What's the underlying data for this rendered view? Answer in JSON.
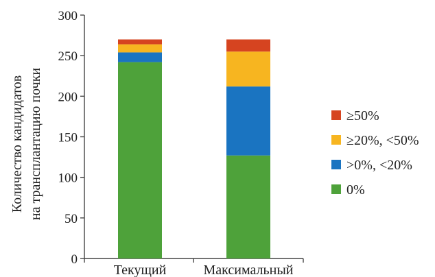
{
  "chart_data": {
    "type": "bar",
    "stacked": true,
    "categories": [
      "Текущий",
      "Максимальный"
    ],
    "series": [
      {
        "name": "0%",
        "color": "#4ea23a",
        "values": [
          242,
          127
        ]
      },
      {
        "name": ">0%, <20%",
        "color": "#1a74c1",
        "values": [
          12,
          85
        ]
      },
      {
        "name": "≥20%, <50%",
        "color": "#f7b520",
        "values": [
          10,
          43
        ]
      },
      {
        "name": "≥50%",
        "color": "#d64420",
        "values": [
          6,
          15
        ]
      }
    ],
    "ylabel_lines": [
      "Количество кандидатов",
      "на трансплантацию почки"
    ],
    "ylim": [
      0,
      300
    ],
    "yticks": [
      0,
      50,
      100,
      150,
      200,
      250,
      300
    ],
    "legend_order": [
      "≥50%",
      "≥20%, <50%",
      ">0%, <20%",
      "0%"
    ],
    "legend_position": "right",
    "grid": false
  }
}
